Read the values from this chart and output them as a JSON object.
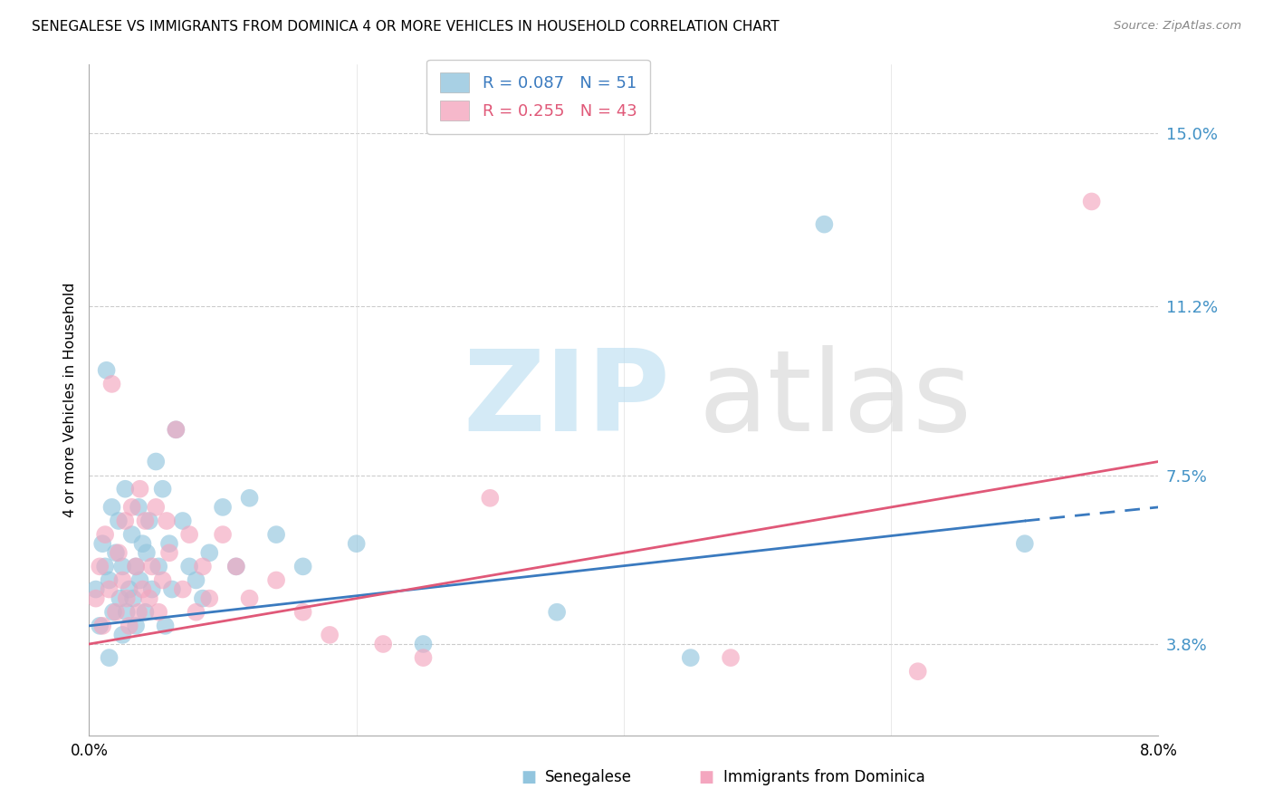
{
  "title": "SENEGALESE VS IMMIGRANTS FROM DOMINICA 4 OR MORE VEHICLES IN HOUSEHOLD CORRELATION CHART",
  "source": "Source: ZipAtlas.com",
  "ylabel": "4 or more Vehicles in Household",
  "ytick_values": [
    3.8,
    7.5,
    11.2,
    15.0
  ],
  "xlim": [
    0.0,
    8.0
  ],
  "ylim": [
    1.8,
    16.5
  ],
  "legend_r1": "R = 0.087",
  "legend_n1": "N = 51",
  "legend_r2": "R = 0.255",
  "legend_n2": "N = 43",
  "color_blue": "#92c5de",
  "color_pink": "#f4a6bf",
  "color_blue_line": "#3a7abf",
  "color_pink_line": "#e05878",
  "color_blue_text": "#3a7abf",
  "color_pink_text": "#e05878",
  "blue_dots_x": [
    0.05,
    0.08,
    0.1,
    0.12,
    0.13,
    0.15,
    0.17,
    0.18,
    0.2,
    0.22,
    0.23,
    0.25,
    0.27,
    0.28,
    0.3,
    0.32,
    0.33,
    0.35,
    0.37,
    0.38,
    0.4,
    0.42,
    0.43,
    0.45,
    0.47,
    0.5,
    0.52,
    0.55,
    0.57,
    0.6,
    0.62,
    0.65,
    0.7,
    0.75,
    0.8,
    0.85,
    0.9,
    1.0,
    1.1,
    1.2,
    1.4,
    1.6,
    2.0,
    2.5,
    3.5,
    4.5,
    5.5,
    7.0,
    0.15,
    0.25,
    0.35
  ],
  "blue_dots_y": [
    5.0,
    4.2,
    6.0,
    5.5,
    9.8,
    5.2,
    6.8,
    4.5,
    5.8,
    6.5,
    4.8,
    5.5,
    7.2,
    4.5,
    5.0,
    6.2,
    4.8,
    5.5,
    6.8,
    5.2,
    6.0,
    4.5,
    5.8,
    6.5,
    5.0,
    7.8,
    5.5,
    7.2,
    4.2,
    6.0,
    5.0,
    8.5,
    6.5,
    5.5,
    5.2,
    4.8,
    5.8,
    6.8,
    5.5,
    7.0,
    6.2,
    5.5,
    6.0,
    3.8,
    4.5,
    3.5,
    13.0,
    6.0,
    3.5,
    4.0,
    4.2
  ],
  "pink_dots_x": [
    0.05,
    0.08,
    0.1,
    0.12,
    0.15,
    0.17,
    0.2,
    0.22,
    0.25,
    0.27,
    0.28,
    0.3,
    0.32,
    0.35,
    0.37,
    0.38,
    0.4,
    0.42,
    0.45,
    0.47,
    0.5,
    0.52,
    0.55,
    0.58,
    0.6,
    0.65,
    0.7,
    0.75,
    0.8,
    0.85,
    0.9,
    1.0,
    1.1,
    1.2,
    1.4,
    1.6,
    1.8,
    2.2,
    2.5,
    3.0,
    4.8,
    6.2,
    7.5
  ],
  "pink_dots_y": [
    4.8,
    5.5,
    4.2,
    6.2,
    5.0,
    9.5,
    4.5,
    5.8,
    5.2,
    6.5,
    4.8,
    4.2,
    6.8,
    5.5,
    4.5,
    7.2,
    5.0,
    6.5,
    4.8,
    5.5,
    6.8,
    4.5,
    5.2,
    6.5,
    5.8,
    8.5,
    5.0,
    6.2,
    4.5,
    5.5,
    4.8,
    6.2,
    5.5,
    4.8,
    5.2,
    4.5,
    4.0,
    3.8,
    3.5,
    7.0,
    3.5,
    3.2,
    13.5
  ],
  "line_blue_x0": 0.0,
  "line_blue_y0": 4.2,
  "line_blue_x1": 7.0,
  "line_blue_y1": 6.5,
  "line_blue_dash_x0": 7.0,
  "line_blue_dash_y0": 6.5,
  "line_blue_dash_x1": 8.0,
  "line_blue_dash_y1": 6.8,
  "line_pink_x0": 0.0,
  "line_pink_y0": 3.8,
  "line_pink_x1": 8.0,
  "line_pink_y1": 7.8
}
